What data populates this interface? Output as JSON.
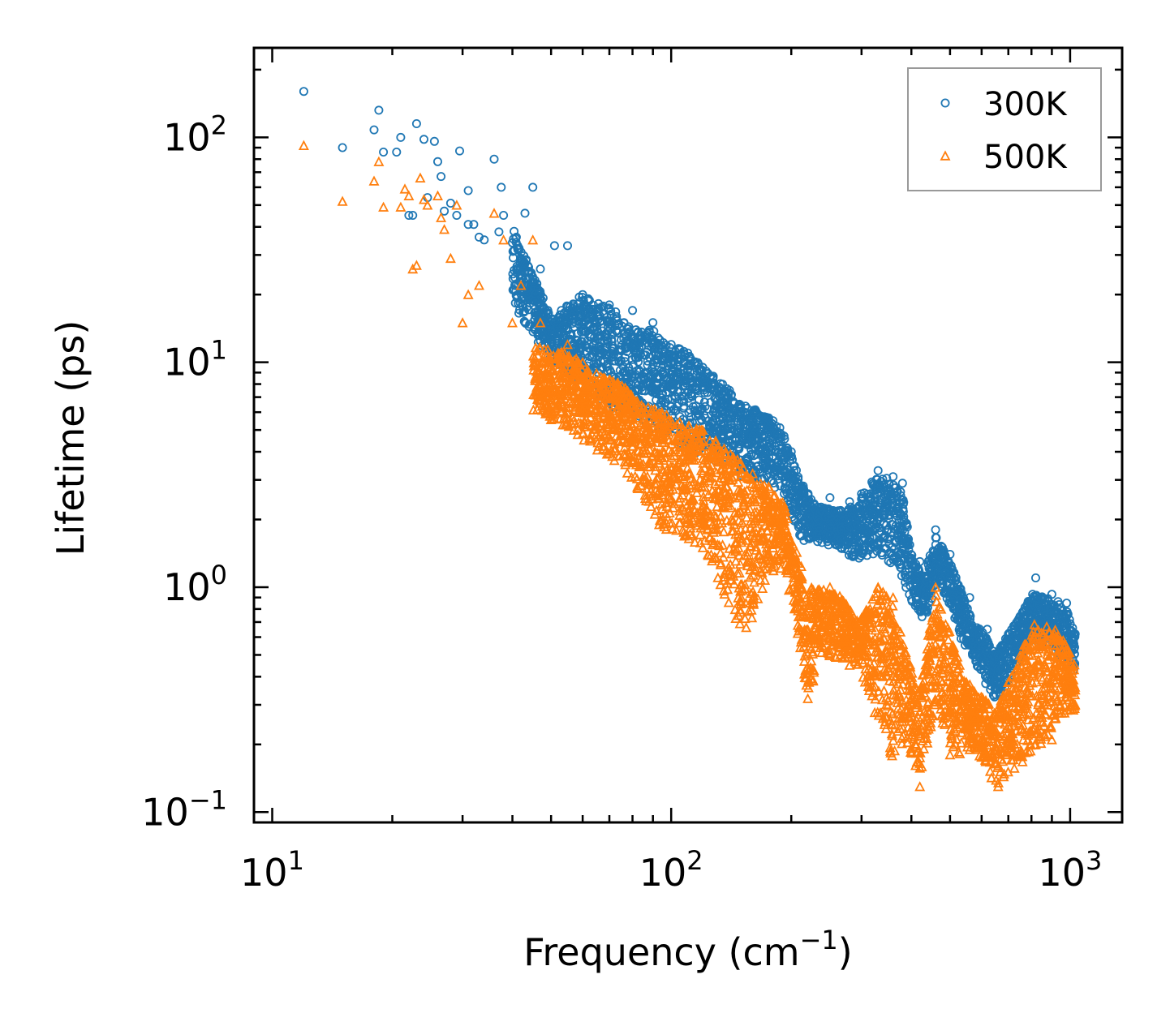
{
  "chart_data": {
    "type": "scatter",
    "xscale": "log",
    "yscale": "log",
    "xlabel": "Frequency (cm",
    "xlabel_sup": "−1",
    "xlabel_end": ")",
    "ylabel": "Lifetime (ps)",
    "xlim": [
      9,
      1350
    ],
    "ylim": [
      0.09,
      250
    ],
    "x_ticks": [
      {
        "value": 10,
        "base": "10",
        "exp": "1"
      },
      {
        "value": 100,
        "base": "10",
        "exp": "2"
      },
      {
        "value": 1000,
        "base": "10",
        "exp": "3"
      }
    ],
    "y_ticks": [
      {
        "value": 0.1,
        "base": "10",
        "exp": "−1"
      },
      {
        "value": 1,
        "base": "10",
        "exp": "0"
      },
      {
        "value": 10,
        "base": "10",
        "exp": "1"
      },
      {
        "value": 100,
        "base": "10",
        "exp": "2"
      }
    ],
    "legend": {
      "position": "top-right"
    },
    "series": [
      {
        "name": "300K",
        "marker": "circle",
        "color": "#1f77b4",
        "points": [
          [
            12,
            160
          ],
          [
            15,
            90
          ],
          [
            18,
            108
          ],
          [
            18.5,
            132
          ],
          [
            19,
            86
          ],
          [
            20.5,
            86
          ],
          [
            21,
            100
          ],
          [
            22,
            45
          ],
          [
            22.5,
            45
          ],
          [
            23,
            115
          ],
          [
            24,
            98
          ],
          [
            24.5,
            54
          ],
          [
            25.5,
            96
          ],
          [
            26,
            78
          ],
          [
            26.5,
            67
          ],
          [
            27,
            47
          ],
          [
            28,
            51
          ],
          [
            29,
            45
          ],
          [
            29.5,
            87
          ],
          [
            31,
            58
          ],
          [
            31,
            41
          ],
          [
            32,
            41
          ],
          [
            33,
            36
          ],
          [
            34,
            35
          ],
          [
            36,
            80
          ],
          [
            37,
            38
          ],
          [
            37.5,
            60
          ],
          [
            38,
            45
          ],
          [
            40,
            34
          ],
          [
            41,
            26
          ],
          [
            43,
            46
          ],
          [
            45,
            60
          ],
          [
            47,
            26
          ],
          [
            51,
            33
          ],
          [
            55,
            33
          ],
          [
            60,
            20
          ],
          [
            70,
            18
          ],
          [
            80,
            17
          ],
          [
            90,
            15
          ],
          [
            100,
            12
          ],
          [
            110,
            11
          ],
          [
            120,
            9.5
          ],
          [
            140,
            7.5
          ],
          [
            160,
            6
          ],
          [
            180,
            5.5
          ],
          [
            200,
            4
          ],
          [
            220,
            2.6
          ],
          [
            250,
            2.5
          ],
          [
            280,
            2.4
          ],
          [
            300,
            2.6
          ],
          [
            330,
            3.3
          ],
          [
            360,
            3.1
          ],
          [
            380,
            2.9
          ],
          [
            420,
            1.3
          ],
          [
            460,
            1.8
          ],
          [
            500,
            1.4
          ],
          [
            560,
            0.9
          ],
          [
            620,
            0.65
          ],
          [
            660,
            0.5
          ],
          [
            820,
            1.1
          ],
          [
            900,
            0.93
          ],
          [
            980,
            0.85
          ],
          [
            1030,
            0.62
          ]
        ],
        "bands": [
          [
            40,
            40,
            18
          ],
          [
            50,
            16,
            10
          ],
          [
            60,
            20,
            8
          ],
          [
            70,
            18,
            6
          ],
          [
            80,
            14,
            6
          ],
          [
            90,
            14,
            5
          ],
          [
            100,
            12,
            4.5
          ],
          [
            110,
            11,
            4
          ],
          [
            120,
            9.5,
            3.8
          ],
          [
            135,
            8,
            3.5
          ],
          [
            150,
            6.5,
            3.1
          ],
          [
            170,
            6,
            3
          ],
          [
            190,
            5,
            2.6
          ],
          [
            210,
            3,
            1.6
          ],
          [
            230,
            2.3,
            1.6
          ],
          [
            260,
            2.2,
            1.5
          ],
          [
            290,
            2.3,
            1.3
          ],
          [
            320,
            3,
            1.4
          ],
          [
            350,
            3.2,
            1.3
          ],
          [
            380,
            2.6,
            1.1
          ],
          [
            400,
            1.4,
            0.85
          ],
          [
            430,
            1.1,
            0.7
          ],
          [
            460,
            1.7,
            1.0
          ],
          [
            490,
            1.4,
            0.9
          ],
          [
            530,
            1.0,
            0.6
          ],
          [
            570,
            0.7,
            0.48
          ],
          [
            610,
            0.62,
            0.38
          ],
          [
            650,
            0.5,
            0.3
          ],
          [
            810,
            0.95,
            0.6
          ],
          [
            860,
            0.9,
            0.55
          ],
          [
            920,
            0.88,
            0.5
          ],
          [
            980,
            0.82,
            0.45
          ],
          [
            1030,
            0.6,
            0.42
          ]
        ]
      },
      {
        "name": "500K",
        "marker": "triangle",
        "color": "#ff7f0e",
        "points": [
          [
            12,
            92
          ],
          [
            15,
            52
          ],
          [
            18,
            64
          ],
          [
            18.5,
            78
          ],
          [
            19,
            49
          ],
          [
            21,
            49
          ],
          [
            21.5,
            59
          ],
          [
            22,
            55
          ],
          [
            22.5,
            26
          ],
          [
            23,
            27
          ],
          [
            23.5,
            66
          ],
          [
            24,
            53
          ],
          [
            24.5,
            50
          ],
          [
            26,
            55
          ],
          [
            26.5,
            44
          ],
          [
            27,
            39
          ],
          [
            28,
            29
          ],
          [
            29,
            50
          ],
          [
            30,
            15
          ],
          [
            31,
            20
          ],
          [
            33,
            22
          ],
          [
            36,
            46
          ],
          [
            38,
            35
          ],
          [
            40,
            15
          ],
          [
            42,
            22
          ],
          [
            45,
            35
          ],
          [
            47,
            15
          ],
          [
            55,
            12
          ],
          [
            60,
            10
          ],
          [
            70,
            8
          ],
          [
            80,
            6.5
          ],
          [
            90,
            6
          ],
          [
            100,
            5.5
          ],
          [
            120,
            5
          ],
          [
            140,
            3
          ],
          [
            160,
            3.2
          ],
          [
            180,
            2.3
          ],
          [
            200,
            1.5
          ],
          [
            220,
            0.32
          ],
          [
            250,
            1.0
          ],
          [
            280,
            0.45
          ],
          [
            300,
            0.6
          ],
          [
            330,
            1.0
          ],
          [
            360,
            0.9
          ],
          [
            420,
            0.13
          ],
          [
            460,
            1.0
          ],
          [
            500,
            0.18
          ],
          [
            560,
            0.19
          ],
          [
            620,
            0.18
          ],
          [
            660,
            0.13
          ],
          [
            820,
            0.2
          ],
          [
            900,
            0.21
          ],
          [
            980,
            0.35
          ],
          [
            1030,
            0.3
          ]
        ],
        "bands": [
          [
            45,
            12,
            6
          ],
          [
            55,
            11,
            5
          ],
          [
            65,
            9,
            4
          ],
          [
            75,
            8,
            3.5
          ],
          [
            85,
            6.5,
            2.5
          ],
          [
            95,
            6,
            1.8
          ],
          [
            105,
            5.5,
            1.7
          ],
          [
            120,
            5,
            1.4
          ],
          [
            140,
            4,
            0.8
          ],
          [
            155,
            3.5,
            0.6
          ],
          [
            170,
            3,
            1.0
          ],
          [
            190,
            2.5,
            1.2
          ],
          [
            205,
            1.5,
            0.7
          ],
          [
            220,
            1.0,
            0.33
          ],
          [
            240,
            1.0,
            0.5
          ],
          [
            270,
            0.9,
            0.48
          ],
          [
            295,
            0.7,
            0.45
          ],
          [
            330,
            1.0,
            0.25
          ],
          [
            360,
            0.9,
            0.17
          ],
          [
            390,
            0.5,
            0.2
          ],
          [
            420,
            0.35,
            0.14
          ],
          [
            460,
            1.0,
            0.28
          ],
          [
            490,
            0.7,
            0.22
          ],
          [
            530,
            0.45,
            0.16
          ],
          [
            570,
            0.35,
            0.2
          ],
          [
            610,
            0.32,
            0.16
          ],
          [
            650,
            0.28,
            0.13
          ],
          [
            810,
            0.7,
            0.18
          ],
          [
            860,
            0.68,
            0.2
          ],
          [
            920,
            0.65,
            0.25
          ],
          [
            980,
            0.55,
            0.28
          ],
          [
            1030,
            0.45,
            0.28
          ]
        ]
      }
    ]
  }
}
